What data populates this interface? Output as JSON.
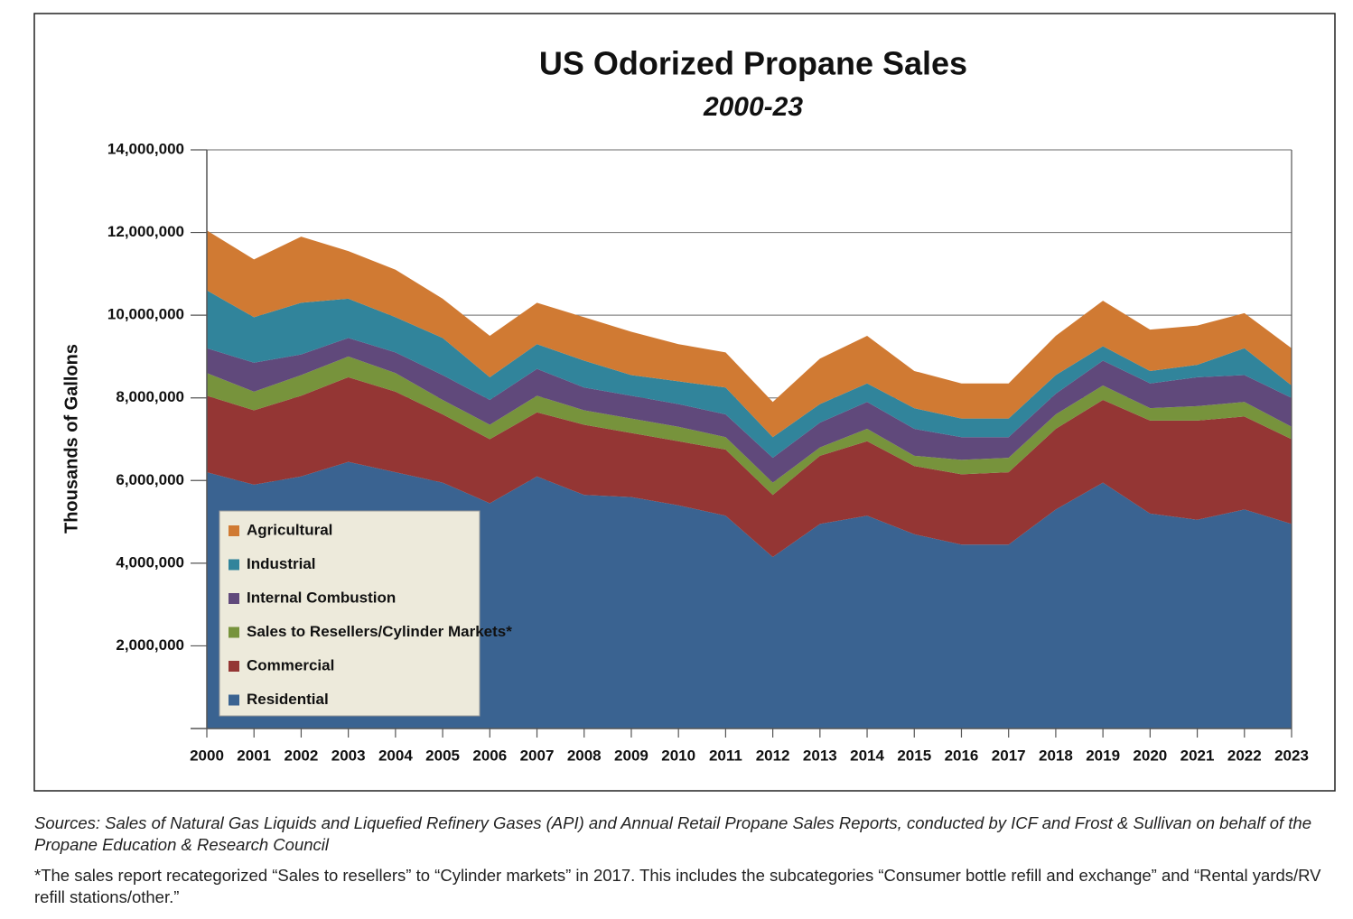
{
  "chart_data": {
    "type": "stacked_area",
    "title": "US Odorized Propane Sales",
    "subtitle": "2000-23",
    "y_label": "Thousands of Gallons",
    "source": "Sources: Sales of Natural Gas Liquids and Liquefied Refinery Gases (API) and Annual Retail Propane Sales Reports, conducted by ICF and Frost & Sullivan on behalf of the Propane Education & Research Council",
    "footnote": "*The sales report recategorized “Sales to resellers” to “Cylinder markets” in 2017. This includes the subcategories “Consumer bottle refill and exchange” and “Rental yards/RV refill stations/other.”",
    "categories": [
      "2000",
      "2001",
      "2002",
      "2003",
      "2004",
      "2005",
      "2006",
      "2007",
      "2008",
      "2009",
      "2010",
      "2011",
      "2012",
      "2013",
      "2014",
      "2015",
      "2016",
      "2017",
      "2018",
      "2019",
      "2020",
      "2021",
      "2022",
      "2023"
    ],
    "series": [
      {
        "name": "Residential",
        "color": "#3a6391",
        "values": [
          6200000,
          5900000,
          6100000,
          6450000,
          6200000,
          5950000,
          5450000,
          6100000,
          5650000,
          5600000,
          5400000,
          5150000,
          4150000,
          4950000,
          5150000,
          4700000,
          4450000,
          4450000,
          5300000,
          5950000,
          5200000,
          5050000,
          5300000,
          4950000
        ]
      },
      {
        "name": "Commercial",
        "color": "#943634",
        "values": [
          1850000,
          1800000,
          1950000,
          2050000,
          1950000,
          1650000,
          1550000,
          1550000,
          1700000,
          1550000,
          1550000,
          1600000,
          1500000,
          1650000,
          1800000,
          1650000,
          1700000,
          1750000,
          1950000,
          2000000,
          2250000,
          2400000,
          2250000,
          2050000
        ]
      },
      {
        "name": "Sales to Resellers/Cylinder Markets*",
        "color": "#77933c",
        "values": [
          550000,
          450000,
          500000,
          500000,
          450000,
          350000,
          350000,
          400000,
          350000,
          350000,
          350000,
          300000,
          300000,
          200000,
          300000,
          250000,
          350000,
          350000,
          350000,
          350000,
          300000,
          350000,
          350000,
          300000
        ]
      },
      {
        "name": "Internal Combustion",
        "color": "#60497b",
        "values": [
          600000,
          700000,
          500000,
          450000,
          500000,
          600000,
          600000,
          650000,
          550000,
          550000,
          550000,
          550000,
          600000,
          600000,
          650000,
          650000,
          550000,
          500000,
          500000,
          600000,
          600000,
          700000,
          650000,
          700000
        ]
      },
      {
        "name": "Industrial",
        "color": "#31849b",
        "values": [
          1400000,
          1100000,
          1250000,
          950000,
          850000,
          900000,
          550000,
          600000,
          650000,
          500000,
          550000,
          650000,
          500000,
          450000,
          450000,
          500000,
          450000,
          450000,
          450000,
          350000,
          300000,
          300000,
          650000,
          300000
        ]
      },
      {
        "name": "Agricultural",
        "color": "#d07a33",
        "values": [
          1450000,
          1400000,
          1600000,
          1150000,
          1150000,
          950000,
          1000000,
          1000000,
          1050000,
          1050000,
          900000,
          850000,
          850000,
          1100000,
          1150000,
          900000,
          850000,
          850000,
          950000,
          1100000,
          1000000,
          950000,
          850000,
          900000
        ]
      }
    ],
    "ylim": [
      0,
      14000000
    ],
    "yticks": [
      {
        "value": 2000000,
        "label": "2,000,000"
      },
      {
        "value": 4000000,
        "label": "4,000,000"
      },
      {
        "value": 6000000,
        "label": "6,000,000"
      },
      {
        "value": 8000000,
        "label": "8,000,000"
      },
      {
        "value": 10000000,
        "label": "10,000,000"
      },
      {
        "value": 12000000,
        "label": "12,000,000"
      },
      {
        "value": 14000000,
        "label": "14,000,000"
      }
    ],
    "grid": true,
    "legend": "lower-left"
  }
}
